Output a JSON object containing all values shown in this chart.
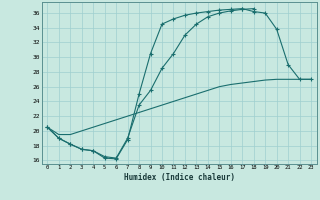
{
  "xlabel": "Humidex (Indice chaleur)",
  "bg_color": "#c8e8e0",
  "grid_color": "#9fcfcf",
  "line_color": "#1a6e6e",
  "xlim": [
    -0.5,
    23.5
  ],
  "ylim": [
    15.5,
    37.5
  ],
  "xticks": [
    0,
    1,
    2,
    3,
    4,
    5,
    6,
    7,
    8,
    9,
    10,
    11,
    12,
    13,
    14,
    15,
    16,
    17,
    18,
    19,
    20,
    21,
    22,
    23
  ],
  "yticks": [
    16,
    18,
    20,
    22,
    24,
    26,
    28,
    30,
    32,
    34,
    36
  ],
  "line1_x": [
    0,
    1,
    2,
    3,
    4,
    5,
    6,
    7,
    8,
    9,
    10,
    11,
    12,
    13,
    14,
    15,
    16,
    17,
    18,
    19,
    20,
    21,
    22,
    23
  ],
  "line1_y": [
    20.5,
    19.0,
    18.2,
    17.5,
    17.3,
    16.3,
    16.2,
    18.8,
    25.0,
    30.5,
    34.5,
    35.2,
    35.7,
    36.0,
    36.2,
    36.4,
    36.5,
    36.6,
    36.2,
    36.0,
    33.8,
    29.0,
    27.0,
    27.0
  ],
  "line2_x": [
    0,
    1,
    2,
    3,
    4,
    5,
    6,
    7,
    8,
    9,
    10,
    11,
    12,
    13,
    14,
    15,
    16,
    17,
    18
  ],
  "line2_y": [
    20.5,
    19.0,
    18.2,
    17.5,
    17.3,
    16.5,
    16.3,
    19.0,
    23.5,
    25.5,
    28.5,
    30.5,
    33.0,
    34.5,
    35.5,
    36.0,
    36.3,
    36.5,
    36.6
  ],
  "line3_x": [
    0,
    1,
    2,
    3,
    4,
    5,
    6,
    7,
    8,
    9,
    10,
    11,
    12,
    13,
    14,
    15,
    16,
    17,
    18,
    19,
    20,
    21,
    22,
    23
  ],
  "line3_y": [
    20.5,
    19.5,
    19.5,
    20.0,
    20.5,
    21.0,
    21.5,
    22.0,
    22.5,
    23.0,
    23.5,
    24.0,
    24.5,
    25.0,
    25.5,
    26.0,
    26.3,
    26.5,
    26.7,
    26.9,
    27.0,
    27.0,
    27.0,
    27.0
  ]
}
